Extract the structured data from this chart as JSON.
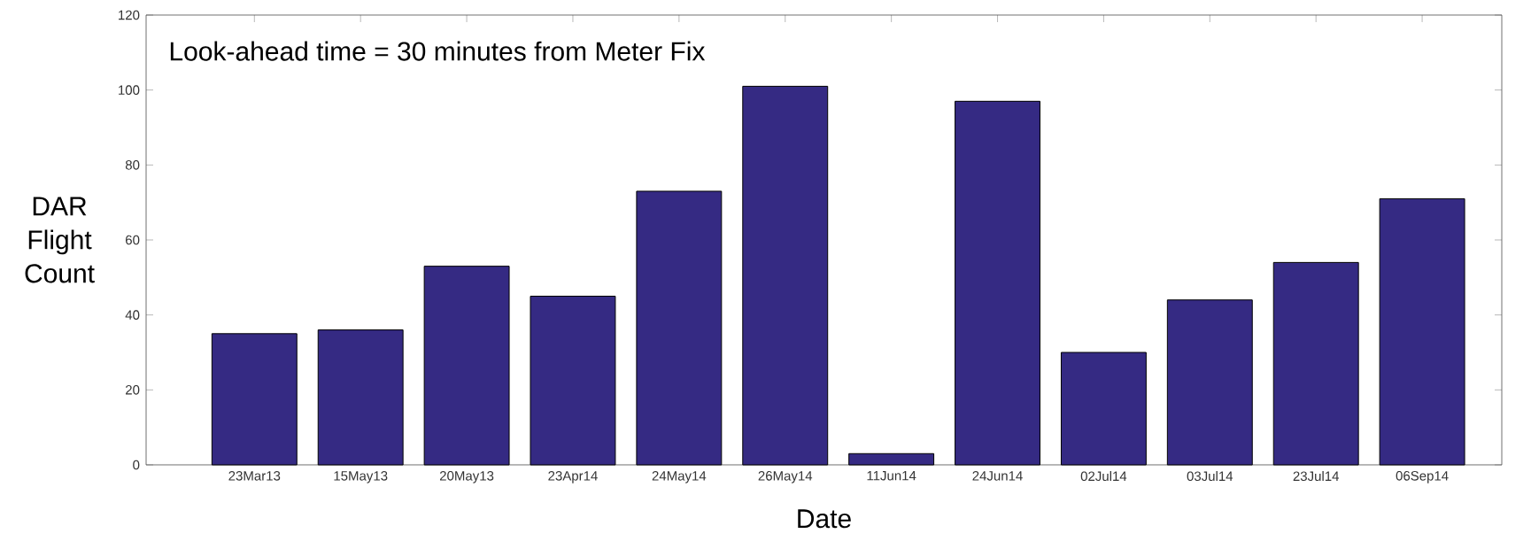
{
  "chart_data": {
    "type": "bar",
    "title": "Look-ahead time = 30 minutes from Meter Fix",
    "xlabel": "Date",
    "ylabel": "DAR Flight Count",
    "categories": [
      "23Mar13",
      "15May13",
      "20May13",
      "23Apr14",
      "24May14",
      "26May14",
      "11Jun14",
      "24Jun14",
      "02Jul14",
      "03Jul14",
      "23Jul14",
      "06Sep14"
    ],
    "values": [
      35,
      36,
      53,
      45,
      73,
      101,
      3,
      97,
      30,
      44,
      54,
      71
    ],
    "color": "#352a83",
    "ylim": [
      0,
      120
    ],
    "yticks": [
      0,
      20,
      40,
      60,
      80,
      100,
      120
    ]
  }
}
